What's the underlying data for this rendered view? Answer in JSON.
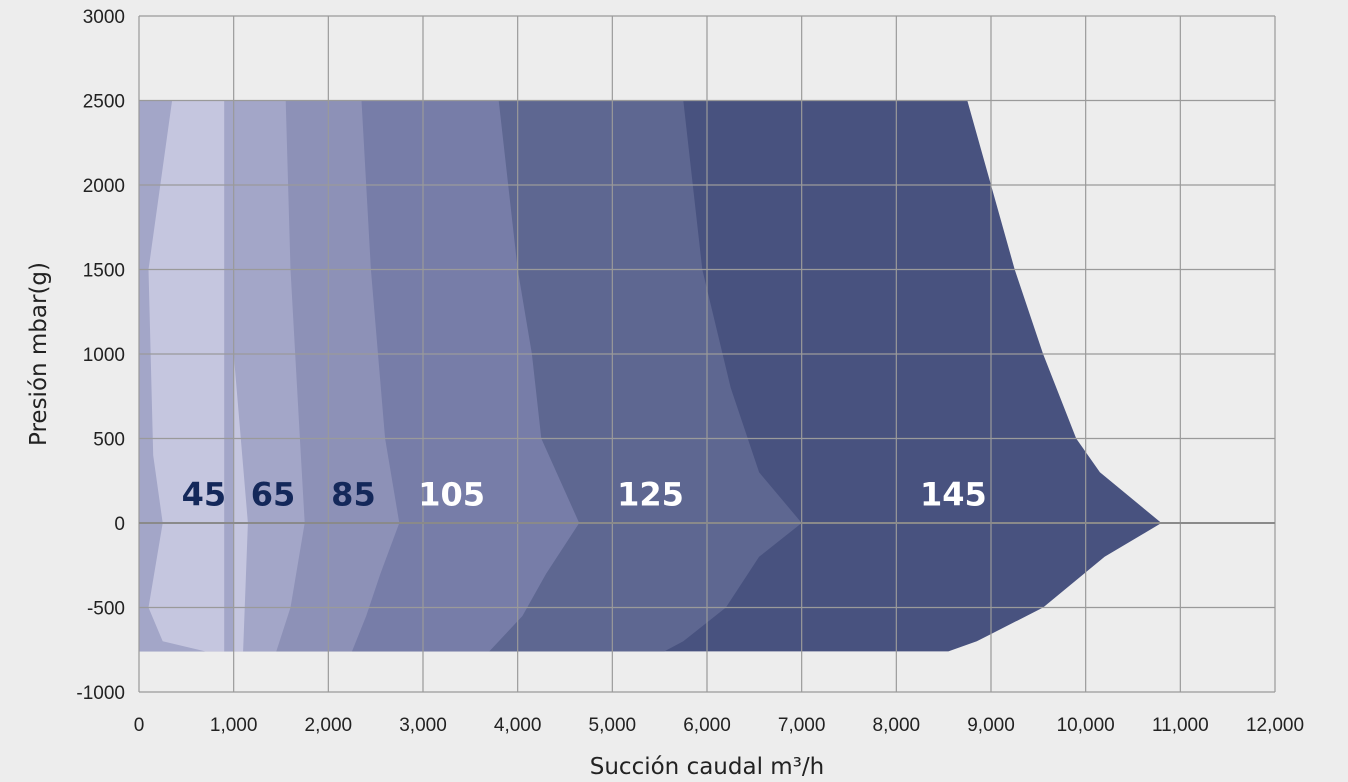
{
  "chart_data": {
    "type": "area",
    "title": "",
    "xlabel": "Succión caudal m³/h",
    "ylabel": "Presión mbar(g)",
    "xlim": [
      0,
      12000
    ],
    "ylim": [
      -1000,
      3000
    ],
    "x_ticks": [
      "0",
      "1,000",
      "2,000",
      "3,000",
      "4,000",
      "5,000",
      "6,000",
      "7,000",
      "8,000",
      "9,000",
      "10,000",
      "11,000",
      "12,000"
    ],
    "y_ticks": [
      "3000",
      "2500",
      "2000",
      "1500",
      "1000",
      "500",
      "0",
      "-500",
      "-1000"
    ],
    "grid": true,
    "series": [
      {
        "name": "145",
        "color": "#48527f",
        "label_color": "#ffffff",
        "label_at": [
          8250,
          170
        ],
        "outline": [
          [
            8750,
            2500
          ],
          [
            9000,
            2000
          ],
          [
            9250,
            1500
          ],
          [
            9550,
            1000
          ],
          [
            9900,
            500
          ],
          [
            10150,
            300
          ],
          [
            10800,
            0
          ],
          [
            10200,
            -200
          ],
          [
            9550,
            -500
          ],
          [
            8850,
            -700
          ],
          [
            8550,
            -760
          ],
          [
            0,
            -760
          ],
          [
            0,
            2500
          ]
        ]
      },
      {
        "name": "125",
        "color": "#5e6791",
        "label_color": "#ffffff",
        "label_at": [
          5050,
          170
        ],
        "outline": [
          [
            5750,
            2500
          ],
          [
            5950,
            1500
          ],
          [
            6250,
            800
          ],
          [
            6550,
            300
          ],
          [
            7000,
            0
          ],
          [
            6550,
            -200
          ],
          [
            6200,
            -500
          ],
          [
            5750,
            -700
          ],
          [
            5550,
            -760
          ],
          [
            0,
            -760
          ],
          [
            0,
            2500
          ]
        ]
      },
      {
        "name": "105",
        "color": "#777da8",
        "label_color": "#ffffff",
        "label_at": [
          2950,
          170
        ],
        "outline": [
          [
            3800,
            2500
          ],
          [
            4000,
            1500
          ],
          [
            4150,
            1000
          ],
          [
            4250,
            500
          ],
          [
            4650,
            0
          ],
          [
            4300,
            -300
          ],
          [
            4050,
            -550
          ],
          [
            3700,
            -760
          ],
          [
            0,
            -760
          ],
          [
            0,
            2500
          ]
        ]
      },
      {
        "name": "85",
        "color": "#8d91b7",
        "label_color": "#14285a",
        "label_at": [
          2030,
          170
        ],
        "outline": [
          [
            2350,
            2500
          ],
          [
            2450,
            1500
          ],
          [
            2600,
            500
          ],
          [
            2750,
            0
          ],
          [
            2550,
            -300
          ],
          [
            2400,
            -550
          ],
          [
            2250,
            -760
          ],
          [
            0,
            -760
          ],
          [
            0,
            2500
          ]
        ]
      },
      {
        "name": "65",
        "color": "#a3a6c8",
        "label_color": "#14285a",
        "label_at": [
          1180,
          170
        ],
        "outline": [
          [
            1550,
            2500
          ],
          [
            1600,
            1500
          ],
          [
            1700,
            500
          ],
          [
            1750,
            0
          ],
          [
            1600,
            -500
          ],
          [
            1450,
            -760
          ],
          [
            0,
            -760
          ],
          [
            0,
            2500
          ]
        ]
      },
      {
        "name": "45",
        "color": "#c5c6df",
        "label_color": "#14285a",
        "label_at": [
          450,
          170
        ],
        "outline": [
          [
            350,
            2500
          ],
          [
            100,
            1500
          ],
          [
            150,
            400
          ],
          [
            250,
            0
          ],
          [
            100,
            -500
          ],
          [
            250,
            -700
          ],
          [
            700,
            -760
          ],
          [
            1000,
            -760
          ],
          [
            1000,
            1000
          ],
          [
            1150,
            0
          ],
          [
            1100,
            -760
          ],
          [
            900,
            -760
          ],
          [
            900,
            2500
          ]
        ]
      }
    ]
  }
}
